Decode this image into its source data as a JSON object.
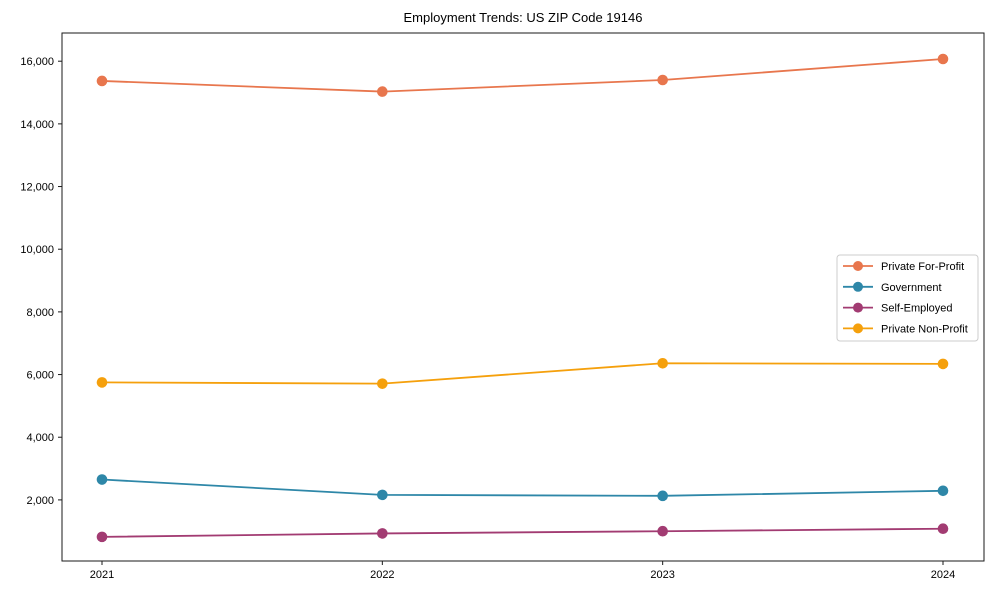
{
  "title": "Employment Trends: US ZIP Code 19146",
  "chart_data": {
    "type": "line",
    "x": [
      2021,
      2022,
      2023,
      2024
    ],
    "xtick_labels": [
      "2021",
      "2022",
      "2023",
      "2024"
    ],
    "series": [
      {
        "name": "Private For-Profit",
        "color": "#e8764d",
        "values": [
          15370,
          15030,
          15400,
          16070
        ]
      },
      {
        "name": "Government",
        "color": "#2e87a8",
        "values": [
          2650,
          2160,
          2130,
          2290
        ]
      },
      {
        "name": "Self-Employed",
        "color": "#a23b72",
        "values": [
          820,
          930,
          1000,
          1080
        ]
      },
      {
        "name": "Private Non-Profit",
        "color": "#f5a00c",
        "values": [
          5750,
          5710,
          6360,
          6340
        ]
      }
    ],
    "yticks": [
      2000,
      4000,
      6000,
      8000,
      10000,
      12000,
      14000,
      16000
    ],
    "ylim": [
      50,
      16900
    ],
    "xlabel": "",
    "ylabel": "",
    "grid": false,
    "marker": "circle",
    "legend_position": "center-right",
    "axis_color": "#1a1a1a",
    "text_color": "#000000"
  }
}
